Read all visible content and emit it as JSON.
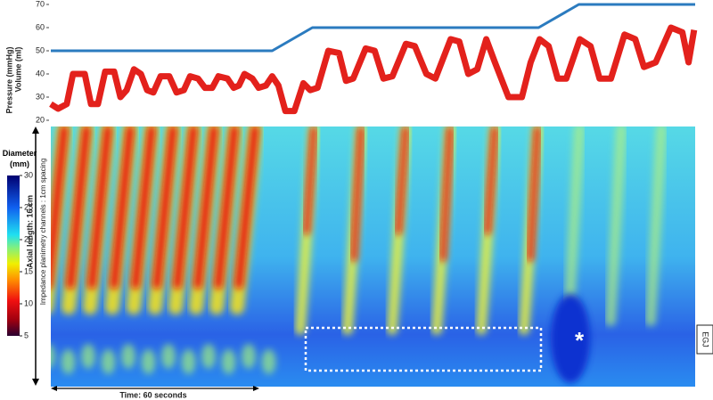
{
  "chart_data": [
    {
      "type": "line",
      "ylim": [
        20,
        70
      ],
      "yticks": [
        20,
        30,
        40,
        50,
        60,
        70
      ],
      "xlim": [
        0,
        186
      ],
      "series": [
        {
          "name": "Pressure (mmHg)",
          "color": "#e3211c",
          "x": [
            0,
            2.1,
            4.6,
            6.4,
            9.8,
            11.6,
            13.6,
            15.7,
            18.3,
            20.1,
            21.9,
            24.0,
            26.0,
            27.8,
            29.6,
            31.7,
            34.2,
            36.3,
            38.4,
            40.2,
            42.5,
            44.5,
            46.6,
            48.4,
            51.0,
            52.8,
            54.3,
            55.9,
            58.2,
            60.0,
            62.1,
            63.9,
            65.7,
            67.7,
            70.3,
            72.9,
            74.9,
            77.0,
            80.1,
            83.2,
            85.2,
            87.3,
            90.9,
            93.5,
            96.0,
            98.6,
            102.5,
            105.1,
            108.4,
            111.0,
            115.4,
            117.9,
            120.5,
            123.1,
            125.7,
            128.2,
            132.1,
            136.0,
            138.5,
            141.1,
            143.7,
            146.3,
            148.8,
            152.7,
            155.8,
            158.4,
            161.7,
            165.6,
            168.7,
            171.2,
            174.6,
            179.0,
            182.3,
            184.1,
            185.7
          ],
          "values": [
            27,
            25,
            27,
            40,
            40,
            27,
            27,
            41,
            41,
            30,
            33,
            42,
            40,
            33,
            32,
            39,
            39,
            32,
            33,
            39,
            38,
            34,
            34,
            39,
            38,
            34,
            35,
            40,
            38,
            34,
            35,
            39,
            35,
            24,
            24,
            36,
            33,
            34,
            50,
            49,
            37,
            38,
            51,
            50,
            38,
            39,
            53,
            52,
            40,
            38,
            55,
            54,
            40,
            42,
            55,
            45,
            30,
            30,
            45,
            55,
            52,
            38,
            38,
            55,
            52,
            38,
            38,
            57,
            55,
            43,
            45,
            60,
            58,
            45,
            59
          ]
        },
        {
          "name": "Volume (ml)",
          "color": "#2b7bbf",
          "x": [
            0,
            63.9,
            75.5,
            140.8,
            152.4,
            186
          ],
          "values": [
            50,
            50,
            60,
            60,
            70,
            70
          ]
        }
      ]
    },
    {
      "type": "heatmap",
      "ylabel": "Axial length: 16 cm",
      "ylabel2": "Impedance planimetry channels : 1cm spacing",
      "xlabel": "Time: 60 seconds",
      "annotations": [
        "*",
        "EGJ"
      ],
      "colorbar": {
        "title": "Diameter (mm)",
        "lim": [
          5,
          30
        ],
        "ticks": [
          5,
          10,
          15,
          20,
          25,
          30
        ]
      }
    }
  ]
}
